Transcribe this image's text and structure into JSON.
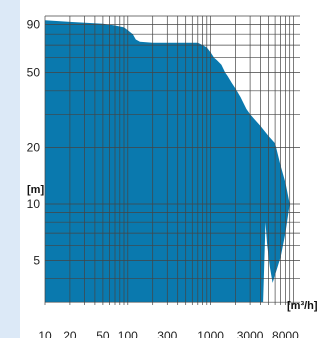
{
  "chart_data": {
    "type": "area",
    "title": "",
    "xlabel": "[m³/h]",
    "ylabel": "[m]",
    "x_scale": "log",
    "y_scale": "log",
    "xlim": [
      10,
      12000
    ],
    "ylim": [
      2.9,
      100
    ],
    "x_ticks": [
      {
        "value": 10,
        "label": "10"
      },
      {
        "value": 20,
        "label": "20"
      },
      {
        "value": 50,
        "label": "50"
      },
      {
        "value": 100,
        "label": "100"
      },
      {
        "value": 300,
        "label": "300"
      },
      {
        "value": 1000,
        "label": "1000"
      },
      {
        "value": 3000,
        "label": "3000"
      },
      {
        "value": 8000,
        "label": "8000"
      }
    ],
    "y_ticks": [
      {
        "value": 90,
        "label": "90"
      },
      {
        "value": 50,
        "label": "50"
      },
      {
        "value": 20,
        "label": "20"
      },
      {
        "value": 10,
        "label": "10"
      },
      {
        "value": 5,
        "label": "5"
      }
    ],
    "grid": true,
    "colors": {
      "fill": "#0a79ae",
      "grid": "#444444",
      "left_band": "#dce9f7",
      "plot_background": "#ffffff"
    },
    "series": [
      {
        "boundary": [
          [
            10,
            95
          ],
          [
            20,
            93
          ],
          [
            50,
            91
          ],
          [
            70,
            89
          ],
          [
            90,
            87
          ],
          [
            100,
            84
          ],
          [
            115,
            80
          ],
          [
            125,
            75
          ],
          [
            140,
            73
          ],
          [
            200,
            72
          ],
          [
            300,
            72
          ],
          [
            500,
            72
          ],
          [
            700,
            72
          ],
          [
            800,
            70
          ],
          [
            900,
            68
          ],
          [
            1000,
            64
          ],
          [
            1100,
            60
          ],
          [
            1200,
            58
          ],
          [
            1350,
            55
          ],
          [
            1500,
            50
          ],
          [
            1600,
            48
          ],
          [
            1800,
            44
          ],
          [
            2000,
            41
          ],
          [
            2300,
            37
          ],
          [
            2700,
            32
          ],
          [
            3000,
            30
          ],
          [
            4000,
            26
          ],
          [
            5000,
            23
          ],
          [
            6000,
            21
          ],
          [
            7000,
            16
          ],
          [
            8000,
            13
          ],
          [
            9000,
            10
          ],
          [
            8000,
            7
          ],
          [
            7000,
            5.2
          ],
          [
            6000,
            4.2
          ],
          [
            5600,
            3.8
          ],
          [
            5200,
            4.6
          ],
          [
            4800,
            6.2
          ],
          [
            4600,
            8
          ],
          [
            4300,
            3.0
          ],
          [
            10,
            3.0
          ]
        ]
      }
    ]
  }
}
